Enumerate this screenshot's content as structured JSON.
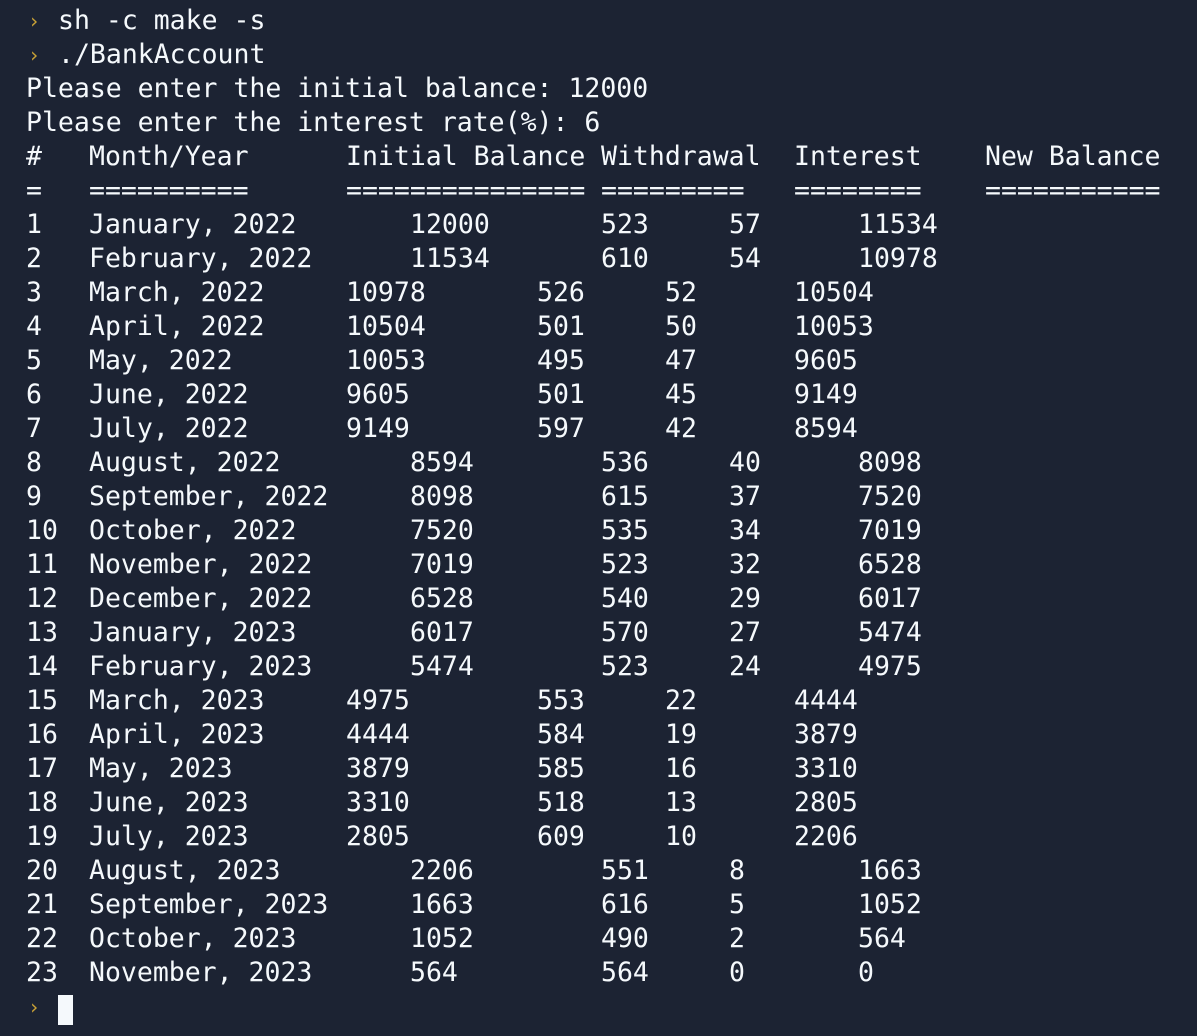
{
  "terminal": {
    "commands": [
      "sh -c make -s",
      "./BankAccount"
    ],
    "prompt_icon": "›",
    "prompt_lines": [
      "Please enter the initial balance: 12000",
      "Please enter the interest rate(%): 6"
    ],
    "headers": [
      "#",
      "Month/Year",
      "Initial Balance",
      "Withdrawal",
      "Interest",
      "New Balance"
    ],
    "underlines": [
      "=",
      "==========",
      "===============",
      "=========",
      "========",
      "==========="
    ],
    "rows": [
      {
        "n": "1",
        "month": "January, 2022",
        "initial": "12000",
        "withdrawal": "523",
        "interest": "57",
        "new": "11534",
        "shift": 1
      },
      {
        "n": "2",
        "month": "February, 2022",
        "initial": "11534",
        "withdrawal": "610",
        "interest": "54",
        "new": "10978",
        "shift": 1
      },
      {
        "n": "3",
        "month": "March, 2022",
        "initial": "10978",
        "withdrawal": "526",
        "interest": "52",
        "new": "10504",
        "shift": 0
      },
      {
        "n": "4",
        "month": "April, 2022",
        "initial": "10504",
        "withdrawal": "501",
        "interest": "50",
        "new": "10053",
        "shift": 0
      },
      {
        "n": "5",
        "month": "May, 2022",
        "initial": "10053",
        "withdrawal": "495",
        "interest": "47",
        "new": "9605",
        "shift": 0
      },
      {
        "n": "6",
        "month": "June, 2022",
        "initial": "9605",
        "withdrawal": "501",
        "interest": "45",
        "new": "9149",
        "shift": 0
      },
      {
        "n": "7",
        "month": "July, 2022",
        "initial": "9149",
        "withdrawal": "597",
        "interest": "42",
        "new": "8594",
        "shift": 0
      },
      {
        "n": "8",
        "month": "August, 2022",
        "initial": "8594",
        "withdrawal": "536",
        "interest": "40",
        "new": "8098",
        "shift": 1
      },
      {
        "n": "9",
        "month": "September, 2022",
        "initial": "8098",
        "withdrawal": "615",
        "interest": "37",
        "new": "7520",
        "shift": 1
      },
      {
        "n": "10",
        "month": "October, 2022",
        "initial": "7520",
        "withdrawal": "535",
        "interest": "34",
        "new": "7019",
        "shift": 1
      },
      {
        "n": "11",
        "month": "November, 2022",
        "initial": "7019",
        "withdrawal": "523",
        "interest": "32",
        "new": "6528",
        "shift": 1
      },
      {
        "n": "12",
        "month": "December, 2022",
        "initial": "6528",
        "withdrawal": "540",
        "interest": "29",
        "new": "6017",
        "shift": 1
      },
      {
        "n": "13",
        "month": "January, 2023",
        "initial": "6017",
        "withdrawal": "570",
        "interest": "27",
        "new": "5474",
        "shift": 1
      },
      {
        "n": "14",
        "month": "February, 2023",
        "initial": "5474",
        "withdrawal": "523",
        "interest": "24",
        "new": "4975",
        "shift": 1
      },
      {
        "n": "15",
        "month": "March, 2023",
        "initial": "4975",
        "withdrawal": "553",
        "interest": "22",
        "new": "4444",
        "shift": 0
      },
      {
        "n": "16",
        "month": "April, 2023",
        "initial": "4444",
        "withdrawal": "584",
        "interest": "19",
        "new": "3879",
        "shift": 0
      },
      {
        "n": "17",
        "month": "May, 2023",
        "initial": "3879",
        "withdrawal": "585",
        "interest": "16",
        "new": "3310",
        "shift": 0
      },
      {
        "n": "18",
        "month": "June, 2023",
        "initial": "3310",
        "withdrawal": "518",
        "interest": "13",
        "new": "2805",
        "shift": 0
      },
      {
        "n": "19",
        "month": "July, 2023",
        "initial": "2805",
        "withdrawal": "609",
        "interest": "10",
        "new": "2206",
        "shift": 0
      },
      {
        "n": "20",
        "month": "August, 2023",
        "initial": "2206",
        "withdrawal": "551",
        "interest": "8",
        "new": "1663",
        "shift": 1
      },
      {
        "n": "21",
        "month": "September, 2023",
        "initial": "1663",
        "withdrawal": "616",
        "interest": "5",
        "new": "1052",
        "shift": 1
      },
      {
        "n": "22",
        "month": "October, 2023",
        "initial": "1052",
        "withdrawal": "490",
        "interest": "2",
        "new": "564",
        "shift": 1
      },
      {
        "n": "23",
        "month": "November, 2023",
        "initial": "564",
        "withdrawal": "564",
        "interest": "0",
        "new": "0",
        "shift": 1
      }
    ],
    "colors": {
      "background": "#1c2333",
      "foreground": "#f5f9fc",
      "prompt": "#c9a236"
    }
  }
}
